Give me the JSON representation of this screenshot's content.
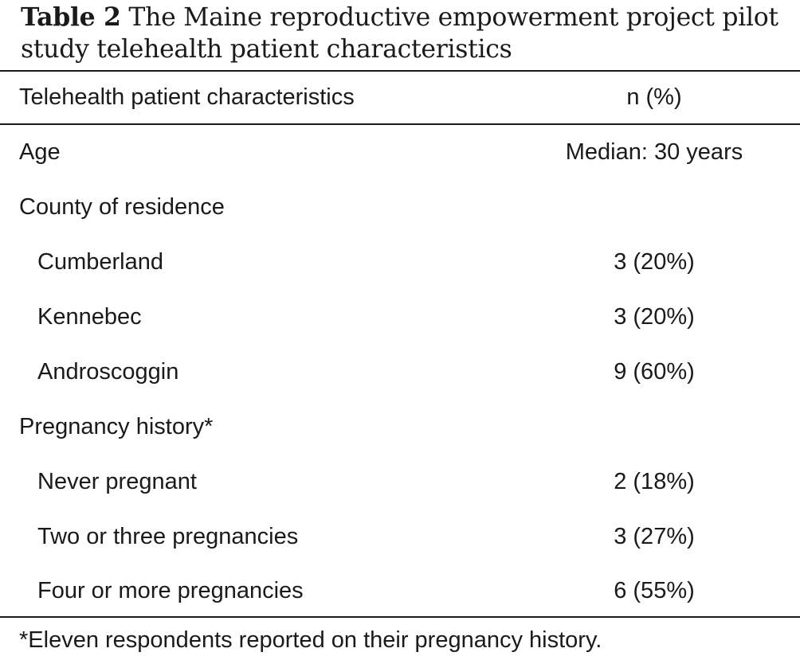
{
  "caption": {
    "label": "Table 2",
    "text": "The Maine reproductive empowerment project pilot study telehealth patient characteristics"
  },
  "table": {
    "headers": [
      "Telehealth patient characteristics",
      "n (%)"
    ],
    "rows": [
      {
        "label": "Age",
        "value": "Median: 30 years"
      },
      {
        "label": "County of residence",
        "value": ""
      },
      {
        "label": "Cumberland",
        "value": "3 (20%)"
      },
      {
        "label": "Kennebec",
        "value": "3 (20%)"
      },
      {
        "label": "Androscoggin",
        "value": "9 (60%)"
      },
      {
        "label": "Pregnancy history*",
        "value": ""
      },
      {
        "label": "Never pregnant",
        "value": "2 (18%)"
      },
      {
        "label": "Two or three pregnancies",
        "value": "3 (27%)"
      },
      {
        "label": "Four or more pregnancies",
        "value": "6 (55%)"
      }
    ],
    "footnote": "*Eleven respondents reported on their pregnancy history."
  }
}
